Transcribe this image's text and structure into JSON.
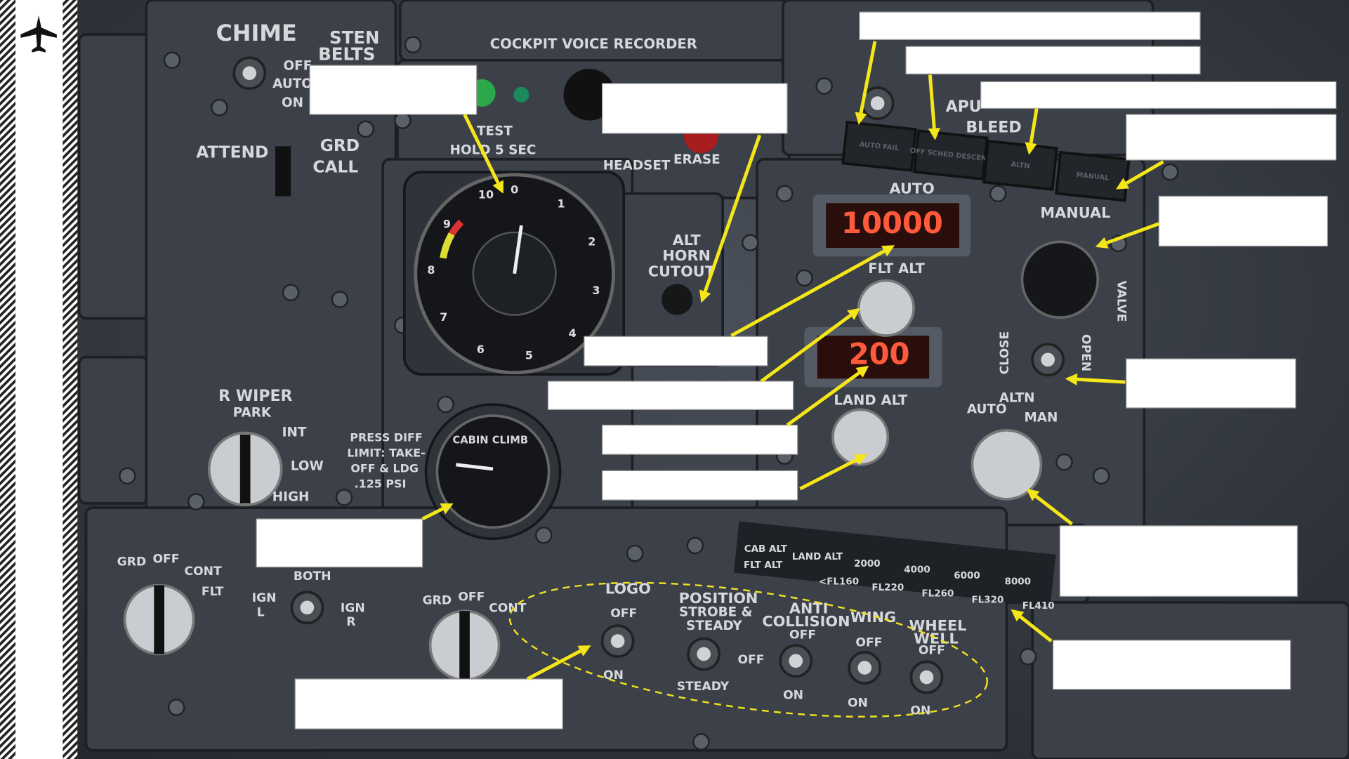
{
  "panel_labels": [
    "CHIME",
    "STEN",
    "BELTS",
    "OFF",
    "AUTO",
    "ON",
    "ATTEND",
    "GRD",
    "CALL",
    "COCKPIT VOICE RECORDER",
    "TEST",
    "HOLD 5 SEC",
    "HEADSET",
    "ERASE",
    "ALT",
    "HORN",
    "CUTOUT",
    "R WIPER",
    "PARK",
    "INT",
    "LOW",
    "HIGH",
    "PRESS DIFF",
    "LIMIT: TAKE-",
    "OFF & LDG",
    ".125 PSI",
    "CABIN CLIMB",
    "AUTO",
    "FLT ALT",
    "LAND ALT",
    "MANUAL",
    "ALTN",
    "AUTO",
    "MAN",
    "APU",
    "BLEED",
    "GRD",
    "OFF",
    "CONT",
    "FLT",
    "BOTH",
    "IGN",
    "L",
    "IGN",
    "R",
    "GRD",
    "OFF",
    "CONT",
    "LOGO",
    "OFF",
    "ON",
    "POSITION",
    "STROBE &",
    "STEADY",
    "OFF",
    "STEADY",
    "ANTI",
    "COLLISION",
    "OFF",
    "ON",
    "WING",
    "OFF",
    "ON",
    "WHEEL",
    "WELL",
    "OFF",
    "ON",
    "CAB ALT",
    "FLT ALT",
    "LAND ALT",
    "2000",
    "4000",
    "6000",
    "8000",
    "<FL160",
    "FL220",
    "FL260",
    "FL320",
    "FL410",
    "VALVE",
    "CLOSE",
    "OPEN"
  ],
  "annunciators": [
    "AUTO FAIL",
    "OFF SCHED DESCENT",
    "ALTN",
    "MANUAL"
  ],
  "displays": [
    "10000",
    "200"
  ],
  "dial_numbers": [
    "0",
    "1",
    "2",
    "3",
    "4",
    "5",
    "6",
    "7",
    "8",
    "9",
    "10"
  ]
}
